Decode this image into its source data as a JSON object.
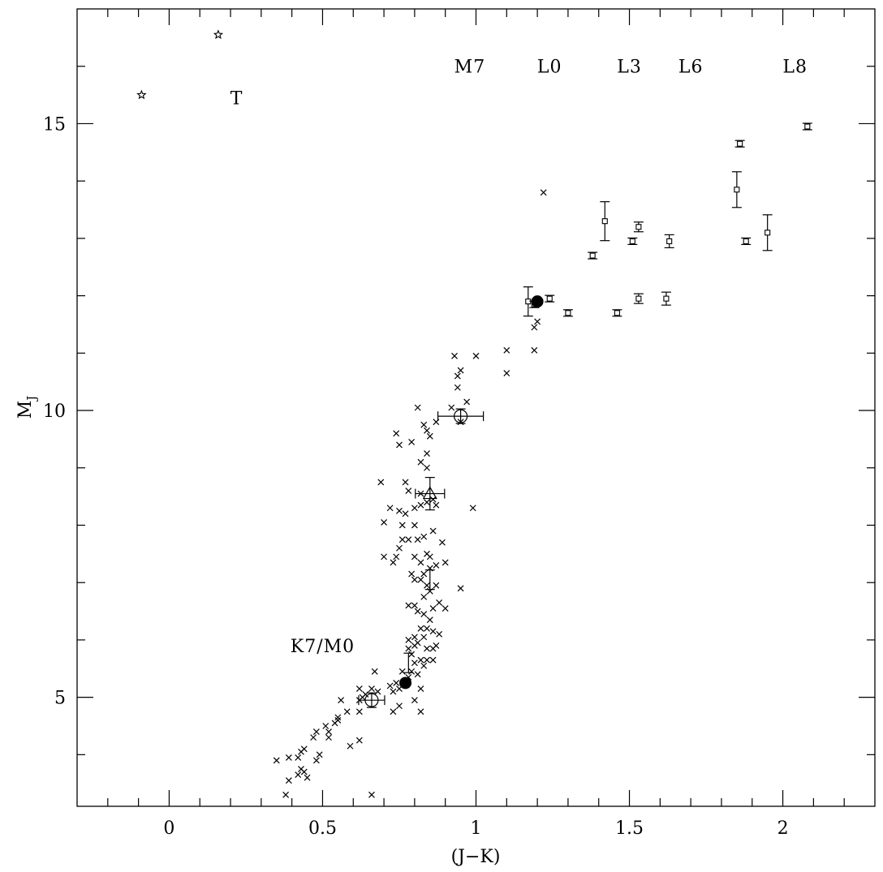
{
  "chart_data": {
    "type": "scatter",
    "title": "",
    "xlabel": "(J−K)",
    "ylabel": {
      "main": "M",
      "sub": "J"
    },
    "xlim": [
      -0.3,
      2.3
    ],
    "ylim": [
      17.0,
      3.1
    ],
    "y_inverted": true,
    "grid": false,
    "legend": "none",
    "x_ticks": [
      {
        "value": 0,
        "label": "0"
      },
      {
        "value": 0.5,
        "label": "0.5"
      },
      {
        "value": 1,
        "label": "1"
      },
      {
        "value": 1.5,
        "label": "1.5"
      },
      {
        "value": 2,
        "label": "2"
      }
    ],
    "y_ticks": [
      {
        "value": 5,
        "label": "5"
      },
      {
        "value": 10,
        "label": "10"
      },
      {
        "value": 15,
        "label": "15"
      }
    ],
    "annotations": [
      {
        "text": "K7/M0",
        "x": 0.5,
        "y": 5.9
      },
      {
        "text": "T",
        "x": 0.22,
        "y": 15.45
      },
      {
        "text": "M7",
        "x": 0.98,
        "y": 16.0
      },
      {
        "text": "L0",
        "x": 1.24,
        "y": 16.0
      },
      {
        "text": "L3",
        "x": 1.5,
        "y": 16.0
      },
      {
        "text": "L6",
        "x": 1.7,
        "y": 16.0
      },
      {
        "text": "L8",
        "x": 2.04,
        "y": 16.0
      }
    ],
    "series": [
      {
        "marker": "cross",
        "points": [
          [
            0.38,
            3.3
          ],
          [
            0.66,
            3.3
          ],
          [
            0.39,
            3.55
          ],
          [
            0.42,
            3.65
          ],
          [
            0.45,
            3.6
          ],
          [
            0.43,
            3.75
          ],
          [
            0.44,
            3.7
          ],
          [
            0.35,
            3.9
          ],
          [
            0.39,
            3.95
          ],
          [
            0.42,
            3.95
          ],
          [
            0.43,
            4.05
          ],
          [
            0.48,
            3.9
          ],
          [
            0.49,
            4.0
          ],
          [
            0.44,
            4.1
          ],
          [
            0.59,
            4.15
          ],
          [
            0.62,
            4.25
          ],
          [
            0.47,
            4.3
          ],
          [
            0.48,
            4.4
          ],
          [
            0.52,
            4.3
          ],
          [
            0.52,
            4.4
          ],
          [
            0.54,
            4.55
          ],
          [
            0.51,
            4.5
          ],
          [
            0.55,
            4.65
          ],
          [
            0.58,
            4.75
          ],
          [
            0.62,
            4.75
          ],
          [
            0.55,
            4.6
          ],
          [
            0.56,
            4.95
          ],
          [
            0.62,
            4.95
          ],
          [
            0.63,
            5.0
          ],
          [
            0.64,
            5.05
          ],
          [
            0.66,
            5.15
          ],
          [
            0.62,
            5.15
          ],
          [
            0.73,
            4.75
          ],
          [
            0.75,
            4.85
          ],
          [
            0.82,
            4.75
          ],
          [
            0.8,
            4.95
          ],
          [
            0.82,
            5.15
          ],
          [
            0.73,
            5.1
          ],
          [
            0.68,
            5.1
          ],
          [
            0.72,
            5.2
          ],
          [
            0.74,
            5.25
          ],
          [
            0.75,
            5.15
          ],
          [
            0.67,
            5.45
          ],
          [
            0.76,
            5.45
          ],
          [
            0.78,
            5.35
          ],
          [
            0.79,
            5.45
          ],
          [
            0.81,
            5.4
          ],
          [
            0.83,
            5.55
          ],
          [
            0.8,
            5.6
          ],
          [
            0.82,
            5.65
          ],
          [
            0.84,
            5.65
          ],
          [
            0.86,
            5.65
          ],
          [
            0.79,
            5.75
          ],
          [
            0.78,
            5.85
          ],
          [
            0.8,
            5.9
          ],
          [
            0.81,
            5.95
          ],
          [
            0.84,
            5.85
          ],
          [
            0.86,
            5.85
          ],
          [
            0.87,
            5.9
          ],
          [
            0.78,
            6.0
          ],
          [
            0.8,
            6.05
          ],
          [
            0.83,
            6.05
          ],
          [
            0.82,
            6.2
          ],
          [
            0.84,
            6.2
          ],
          [
            0.86,
            6.15
          ],
          [
            0.88,
            6.1
          ],
          [
            0.85,
            6.35
          ],
          [
            0.83,
            6.45
          ],
          [
            0.81,
            6.5
          ],
          [
            0.78,
            6.6
          ],
          [
            0.8,
            6.6
          ],
          [
            0.86,
            6.55
          ],
          [
            0.83,
            6.75
          ],
          [
            0.85,
            6.85
          ],
          [
            0.88,
            6.65
          ],
          [
            0.9,
            6.55
          ],
          [
            0.87,
            6.95
          ],
          [
            0.82,
            7.05
          ],
          [
            0.84,
            6.95
          ],
          [
            0.8,
            7.05
          ],
          [
            0.79,
            7.15
          ],
          [
            0.83,
            7.15
          ],
          [
            0.85,
            7.25
          ],
          [
            0.82,
            7.35
          ],
          [
            0.8,
            7.45
          ],
          [
            0.84,
            7.5
          ],
          [
            0.85,
            7.45
          ],
          [
            0.87,
            7.3
          ],
          [
            0.95,
            6.9
          ],
          [
            0.9,
            7.35
          ],
          [
            0.73,
            7.35
          ],
          [
            0.74,
            7.45
          ],
          [
            0.7,
            7.45
          ],
          [
            0.75,
            7.6
          ],
          [
            0.76,
            7.75
          ],
          [
            0.78,
            7.75
          ],
          [
            0.81,
            7.75
          ],
          [
            0.83,
            7.8
          ],
          [
            0.8,
            8.0
          ],
          [
            0.86,
            7.9
          ],
          [
            0.89,
            7.7
          ],
          [
            0.76,
            8.0
          ],
          [
            0.7,
            8.05
          ],
          [
            0.72,
            8.3
          ],
          [
            0.75,
            8.25
          ],
          [
            0.77,
            8.2
          ],
          [
            0.8,
            8.3
          ],
          [
            0.82,
            8.35
          ],
          [
            0.84,
            8.4
          ],
          [
            0.86,
            8.45
          ],
          [
            0.87,
            8.35
          ],
          [
            0.69,
            8.75
          ],
          [
            0.77,
            8.75
          ],
          [
            0.78,
            8.6
          ],
          [
            0.82,
            8.55
          ],
          [
            0.99,
            8.3
          ],
          [
            0.84,
            9.0
          ],
          [
            0.82,
            9.1
          ],
          [
            0.84,
            9.25
          ],
          [
            0.75,
            9.4
          ],
          [
            0.74,
            9.6
          ],
          [
            0.79,
            9.45
          ],
          [
            0.84,
            9.65
          ],
          [
            0.83,
            9.75
          ],
          [
            0.85,
            9.55
          ],
          [
            0.87,
            9.8
          ],
          [
            0.95,
            9.8
          ],
          [
            0.92,
            10.05
          ],
          [
            0.81,
            10.05
          ],
          [
            0.97,
            10.15
          ],
          [
            0.94,
            10.4
          ],
          [
            0.94,
            10.6
          ],
          [
            0.95,
            10.7
          ],
          [
            0.93,
            10.95
          ],
          [
            1.0,
            10.95
          ],
          [
            1.1,
            10.65
          ],
          [
            1.1,
            11.05
          ],
          [
            1.19,
            11.05
          ],
          [
            1.19,
            11.45
          ],
          [
            1.2,
            11.55
          ],
          [
            1.22,
            13.8
          ]
        ]
      },
      {
        "marker": "open-square-errorbar",
        "points": [
          [
            1.17,
            11.9
          ],
          [
            1.19,
            11.85
          ],
          [
            1.24,
            11.95
          ],
          [
            1.3,
            11.7
          ],
          [
            1.38,
            12.7
          ],
          [
            1.42,
            13.3
          ],
          [
            1.46,
            11.7
          ],
          [
            1.51,
            12.95
          ],
          [
            1.53,
            11.95
          ],
          [
            1.53,
            13.2
          ],
          [
            1.62,
            11.95
          ],
          [
            1.63,
            12.95
          ],
          [
            1.85,
            13.85
          ],
          [
            1.86,
            14.65
          ],
          [
            1.88,
            12.95
          ],
          [
            1.95,
            13.1
          ],
          [
            2.08,
            14.95
          ]
        ]
      },
      {
        "marker": "open-star",
        "points": [
          [
            -0.09,
            15.5
          ],
          [
            0.16,
            16.55
          ]
        ]
      },
      {
        "marker": "filled-circle",
        "points": [
          [
            0.77,
            5.25
          ],
          [
            1.2,
            11.9
          ]
        ]
      },
      {
        "marker": "open-circle-errorbar",
        "points": [
          [
            0.66,
            4.95
          ],
          [
            0.95,
            9.9
          ]
        ]
      },
      {
        "marker": "open-triangle-errorbar",
        "points": [
          [
            0.85,
            8.55
          ]
        ]
      },
      {
        "marker": "vertical-errorbar",
        "points": [
          [
            0.78,
            5.6
          ],
          [
            0.85,
            7.05
          ]
        ]
      }
    ]
  }
}
